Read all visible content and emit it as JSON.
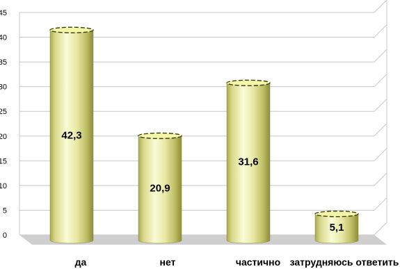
{
  "chart_data": {
    "type": "bar",
    "style": "3d-cylinder",
    "categories": [
      "да",
      "нет",
      "частично",
      "затрудняюсь ответить"
    ],
    "values": [
      42.3,
      20.9,
      31.6,
      5.1
    ],
    "data_labels": [
      "42,3",
      "20,9",
      "31,6",
      "5,1"
    ],
    "y_ticks": [
      "0",
      "5",
      "10",
      "15",
      "20",
      "25",
      "30",
      "35",
      "40",
      "45"
    ],
    "ylim": [
      0,
      45
    ],
    "grid": true,
    "legend": "none",
    "colors": {
      "bar_light": "#fafad2",
      "bar_mid": "#e3e39a",
      "bar_dark": "#9c9c47",
      "bar_top": "#f5f5a8",
      "floor": "#cfcfcf",
      "grid": "#c8c8c8"
    }
  }
}
